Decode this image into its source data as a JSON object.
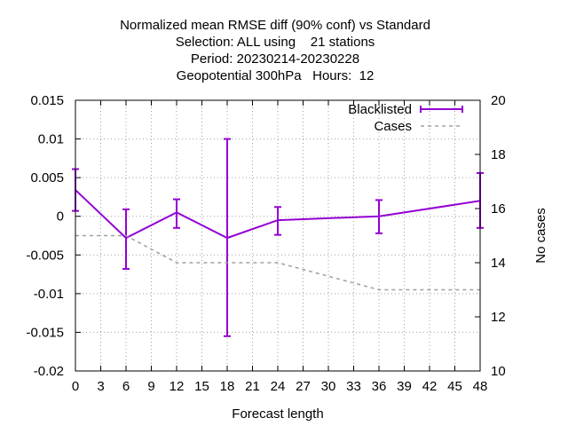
{
  "chart_data": {
    "type": "line",
    "title_lines": [
      "Normalized mean RMSE diff (90% conf) vs Standard",
      "Selection: ALL using    21 stations",
      "Period: 20230214-20230228",
      "Geopotential 300hPa   Hours:  12"
    ],
    "xlabel": "Forecast length",
    "ylabel_right": "No cases",
    "xlim": [
      0,
      48
    ],
    "ylim": [
      -0.02,
      0.015
    ],
    "y2lim": [
      10,
      20
    ],
    "x_ticks": [
      "0",
      "3",
      "6",
      "9",
      "12",
      "15",
      "18",
      "21",
      "24",
      "27",
      "30",
      "33",
      "36",
      "39",
      "42",
      "45",
      "48"
    ],
    "y_ticks": [
      "0.015",
      "0.01",
      "0.005",
      "0",
      "-0.005",
      "-0.01",
      "-0.015",
      "-0.02"
    ],
    "y2_ticks": [
      "20",
      "18",
      "16",
      "14",
      "12",
      "10"
    ],
    "grid": true,
    "legend_position": "top-right",
    "series": [
      {
        "name": "Blacklisted",
        "axis": "left",
        "style": "line-errorbars",
        "color": "#9400d3",
        "x": [
          0,
          6,
          12,
          18,
          24,
          36,
          48
        ],
        "y": [
          0.0034,
          -0.0028,
          0.0005,
          -0.0028,
          -0.0005,
          0.0,
          0.002
        ],
        "y_low": [
          0.0007,
          -0.0068,
          -0.0015,
          -0.0155,
          -0.0024,
          -0.0022,
          -0.0015
        ],
        "y_high": [
          0.0061,
          0.0009,
          0.0022,
          0.01,
          0.0012,
          0.0021,
          0.0056
        ]
      },
      {
        "name": "Cases",
        "axis": "right",
        "style": "dashed",
        "color": "#a0a0a0",
        "x": [
          0,
          6,
          12,
          18,
          24,
          36,
          48
        ],
        "y": [
          15,
          15,
          14,
          14,
          14,
          13,
          13
        ]
      }
    ]
  }
}
